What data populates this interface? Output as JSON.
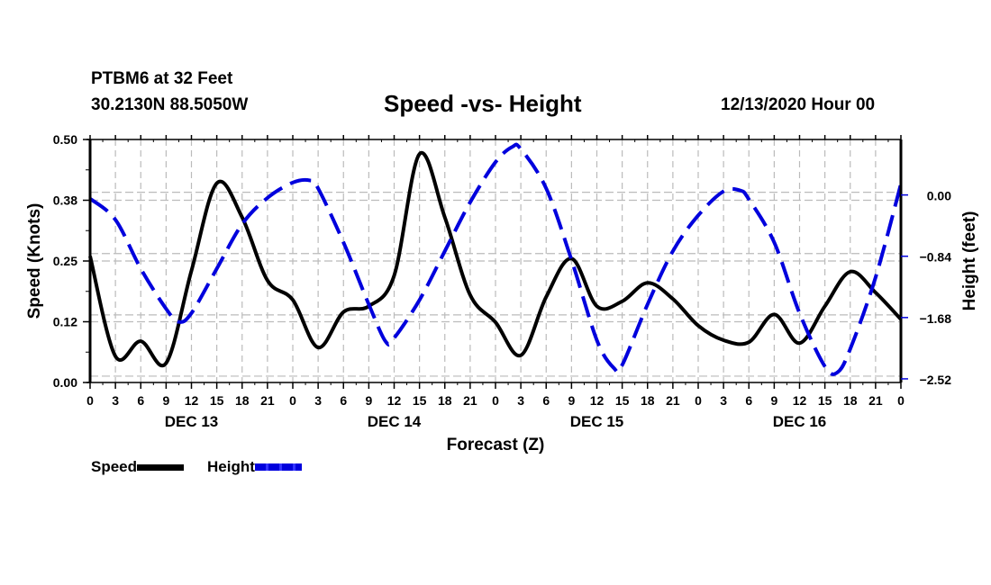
{
  "header": {
    "station": "PTBM6 at 32 Feet",
    "coords": "30.2130N 88.5050W",
    "title": "Speed -vs- Height",
    "run_time": "12/13/2020 Hour 00"
  },
  "legend": {
    "speed_label": "Speed",
    "height_label": "Height"
  },
  "colors": {
    "speed": "#000000",
    "height": "#0000dd",
    "grid": "#bbbbbb"
  },
  "chart_data": {
    "type": "line",
    "title": "Speed -vs- Height",
    "xlabel": "Forecast (Z)",
    "ylabel": "Speed (Knots)",
    "y2label": "Height (feet)",
    "x_unit": "hours since 12/13/2020 00Z",
    "xlim": [
      0,
      96
    ],
    "ylim": [
      0,
      0.5
    ],
    "y2lim": [
      -2.57,
      0.76
    ],
    "grid": true,
    "legend_position": "bottom-left",
    "x_ticks": [
      0,
      3,
      6,
      9,
      12,
      15,
      18,
      21,
      24,
      27,
      30,
      33,
      36,
      39,
      42,
      45,
      48,
      51,
      54,
      57,
      60,
      63,
      66,
      69,
      72,
      75,
      78,
      81,
      84,
      87,
      90,
      93,
      96
    ],
    "x_tick_labels": [
      "0",
      "3",
      "6",
      "9",
      "12",
      "15",
      "18",
      "21",
      "0",
      "3",
      "6",
      "9",
      "12",
      "15",
      "18",
      "21",
      "0",
      "3",
      "6",
      "9",
      "12",
      "15",
      "18",
      "21",
      "0",
      "3",
      "6",
      "9",
      "12",
      "15",
      "18",
      "21",
      "0"
    ],
    "day_labels": [
      {
        "label": "DEC 13",
        "at": 12
      },
      {
        "label": "DEC 14",
        "at": 36
      },
      {
        "label": "DEC 15",
        "at": 60
      },
      {
        "label": "DEC 16",
        "at": 84
      }
    ],
    "y_ticks": [
      0.0,
      0.125,
      0.25,
      0.375,
      0.5
    ],
    "y_tick_labels": [
      "0.00",
      "0.12",
      "0.25",
      "0.38",
      "0.50"
    ],
    "y2_ticks": [
      0.0,
      -0.84,
      -1.68,
      -2.52
    ],
    "y2_tick_labels": [
      "0.00",
      "−0.84",
      "−1.68",
      "−2.52"
    ],
    "series": [
      {
        "name": "Speed",
        "axis": "left",
        "style": "solid",
        "x": [
          0,
          3,
          6,
          9,
          12,
          15,
          18,
          21,
          24,
          27,
          30,
          33,
          36,
          39,
          42,
          45,
          48,
          51,
          54,
          57,
          60,
          63,
          66,
          69,
          72,
          75,
          78,
          81,
          84,
          87,
          90,
          93,
          96
        ],
        "values": [
          0.26,
          0.054,
          0.085,
          0.04,
          0.23,
          0.41,
          0.34,
          0.21,
          0.17,
          0.072,
          0.145,
          0.157,
          0.22,
          0.47,
          0.34,
          0.18,
          0.124,
          0.056,
          0.176,
          0.255,
          0.157,
          0.167,
          0.205,
          0.172,
          0.117,
          0.087,
          0.083,
          0.14,
          0.081,
          0.157,
          0.228,
          0.185,
          0.13
        ]
      },
      {
        "name": "Height",
        "axis": "right",
        "style": "dashed",
        "x": [
          0,
          3,
          6,
          9,
          10.5,
          12,
          15,
          18,
          21,
          24,
          26,
          27,
          30,
          33,
          35,
          36,
          39,
          42,
          45,
          48,
          50,
          51,
          54,
          57,
          60,
          62,
          63,
          66,
          69,
          72,
          75,
          77,
          78,
          81,
          84,
          87,
          88.5,
          90,
          93,
          96
        ],
        "values": [
          -0.05,
          -0.34,
          -1.01,
          -1.56,
          -1.74,
          -1.62,
          -1.01,
          -0.4,
          -0.04,
          0.17,
          0.2,
          0.09,
          -0.65,
          -1.5,
          -2.01,
          -1.96,
          -1.44,
          -0.77,
          -0.1,
          0.45,
          0.66,
          0.63,
          0.09,
          -0.89,
          -1.99,
          -2.37,
          -2.33,
          -1.5,
          -0.77,
          -0.28,
          0.05,
          0.06,
          -0.06,
          -0.65,
          -1.62,
          -2.35,
          -2.43,
          -2.11,
          -1.13,
          0.15
        ]
      }
    ]
  }
}
